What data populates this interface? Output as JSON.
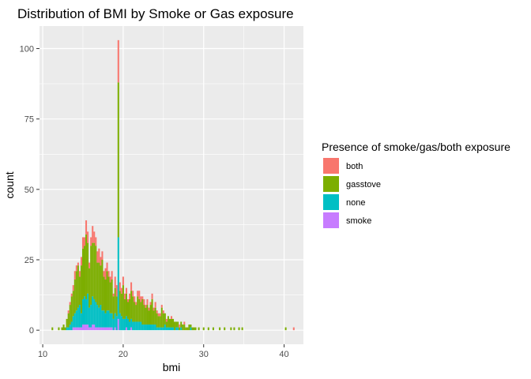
{
  "chart_data": {
    "type": "bar",
    "subtype": "stacked-histogram",
    "title": "Distribution of BMI by Smoke or Gas exposure",
    "xlabel": "bmi",
    "ylabel": "count",
    "xlim": [
      9.6,
      42.4
    ],
    "ylim": [
      -5,
      108
    ],
    "x_ticks": [
      10,
      20,
      30,
      40
    ],
    "y_ticks": [
      0,
      25,
      50,
      75,
      100
    ],
    "grid": true,
    "legend": {
      "title": "Presence of smoke/gas/both exposure",
      "placement": "right",
      "entries": [
        "both",
        "gasstove",
        "none",
        "smoke"
      ]
    },
    "colors": {
      "both": "#F8766D",
      "gasstove": "#7CAE00",
      "none": "#00BFC4",
      "smoke": "#C77CFF",
      "panel": "#EBEBEB",
      "grid": "#FFFFFF"
    },
    "bin_width": 0.2,
    "x_bin_centers": [
      11.2,
      12.0,
      12.4,
      12.6,
      12.8,
      13.0,
      13.2,
      13.4,
      13.6,
      13.8,
      14.0,
      14.2,
      14.4,
      14.6,
      14.8,
      15.0,
      15.2,
      15.4,
      15.6,
      15.8,
      16.0,
      16.2,
      16.4,
      16.6,
      16.8,
      17.0,
      17.2,
      17.4,
      17.6,
      17.8,
      18.0,
      18.2,
      18.4,
      18.6,
      18.8,
      19.0,
      19.2,
      19.4,
      19.6,
      19.8,
      20.0,
      20.2,
      20.4,
      20.6,
      20.8,
      21.0,
      21.2,
      21.4,
      21.6,
      21.8,
      22.0,
      22.2,
      22.4,
      22.6,
      22.8,
      23.0,
      23.2,
      23.4,
      23.6,
      23.8,
      24.0,
      24.2,
      24.4,
      24.6,
      24.8,
      25.0,
      25.2,
      25.4,
      25.6,
      25.8,
      26.0,
      26.2,
      26.4,
      26.6,
      26.8,
      27.0,
      27.2,
      27.4,
      27.6,
      27.8,
      28.0,
      28.2,
      28.4,
      28.6,
      28.8,
      29.0,
      29.4,
      30.0,
      30.6,
      31.2,
      32.0,
      32.6,
      33.4,
      33.8,
      34.4,
      34.8,
      40.2,
      41.2
    ],
    "series": [
      {
        "name": "both",
        "values": [
          0,
          0,
          0,
          0,
          0,
          0,
          1,
          1,
          1,
          2,
          3,
          2,
          1,
          2,
          3,
          4,
          3,
          5,
          4,
          2,
          3,
          6,
          4,
          3,
          4,
          5,
          3,
          3,
          2,
          4,
          3,
          2,
          2,
          3,
          1,
          4,
          4,
          15,
          3,
          2,
          3,
          2,
          2,
          1,
          2,
          3,
          2,
          2,
          1,
          2,
          3,
          2,
          1,
          2,
          1,
          2,
          1,
          1,
          2,
          1,
          2,
          1,
          1,
          1,
          1,
          1,
          0,
          1,
          0,
          0,
          1,
          0,
          0,
          0,
          0,
          1,
          0,
          0,
          1,
          0,
          0,
          0,
          0,
          0,
          0,
          0,
          0,
          0,
          0,
          0,
          0,
          0,
          0,
          0,
          0,
          0,
          0,
          1
        ]
      },
      {
        "name": "gasstove",
        "values": [
          1,
          1,
          1,
          2,
          1,
          3,
          5,
          7,
          9,
          9,
          12,
          14,
          15,
          10,
          17,
          18,
          18,
          23,
          18,
          14,
          21,
          19,
          20,
          20,
          15,
          16,
          14,
          18,
          12,
          12,
          14,
          12,
          11,
          12,
          8,
          9,
          7,
          55,
          8,
          8,
          12,
          7,
          8,
          6,
          8,
          10,
          9,
          7,
          6,
          9,
          8,
          7,
          9,
          7,
          6,
          7,
          5,
          7,
          9,
          5,
          6,
          5,
          4,
          4,
          7,
          5,
          4,
          2,
          4,
          3,
          3,
          3,
          3,
          2,
          2,
          1,
          2,
          2,
          2,
          1,
          1,
          2,
          1,
          1,
          1,
          1,
          1,
          1,
          1,
          1,
          1,
          1,
          1,
          1,
          1,
          1,
          1,
          0
        ]
      },
      {
        "name": "none",
        "values": [
          0,
          0,
          0,
          0,
          0,
          1,
          1,
          2,
          3,
          4,
          5,
          6,
          7,
          8,
          5,
          9,
          10,
          9,
          11,
          7,
          8,
          10,
          9,
          9,
          8,
          7,
          8,
          6,
          6,
          5,
          6,
          6,
          5,
          5,
          4,
          5,
          5,
          29,
          6,
          5,
          4,
          4,
          4,
          4,
          3,
          3,
          3,
          3,
          3,
          3,
          3,
          3,
          2,
          2,
          2,
          2,
          2,
          2,
          2,
          2,
          2,
          1,
          1,
          1,
          1,
          1,
          2,
          1,
          1,
          1,
          1,
          1,
          0,
          1,
          1,
          0,
          1,
          0,
          0,
          0,
          0,
          0,
          1,
          0,
          0,
          0,
          0,
          0,
          0,
          0,
          0,
          0,
          0,
          0,
          0,
          0,
          0,
          0
        ]
      },
      {
        "name": "smoke",
        "values": [
          0,
          0,
          0,
          0,
          0,
          0,
          0,
          0,
          0,
          1,
          1,
          1,
          1,
          1,
          1,
          2,
          2,
          2,
          2,
          1,
          1,
          2,
          2,
          1,
          1,
          1,
          1,
          1,
          1,
          1,
          1,
          1,
          1,
          1,
          0,
          1,
          0,
          4,
          0,
          0,
          0,
          0,
          1,
          0,
          0,
          1,
          0,
          0,
          0,
          0,
          0,
          0,
          0,
          0,
          0,
          0,
          0,
          0,
          0,
          0,
          0,
          0,
          0,
          0,
          0,
          0,
          0,
          0,
          0,
          0,
          0,
          0,
          0,
          0,
          0,
          0,
          0,
          0,
          0,
          0,
          0,
          0,
          0,
          0,
          0,
          0,
          0,
          0,
          0,
          0,
          0,
          0,
          0,
          0,
          0,
          0,
          0,
          0
        ]
      }
    ]
  }
}
